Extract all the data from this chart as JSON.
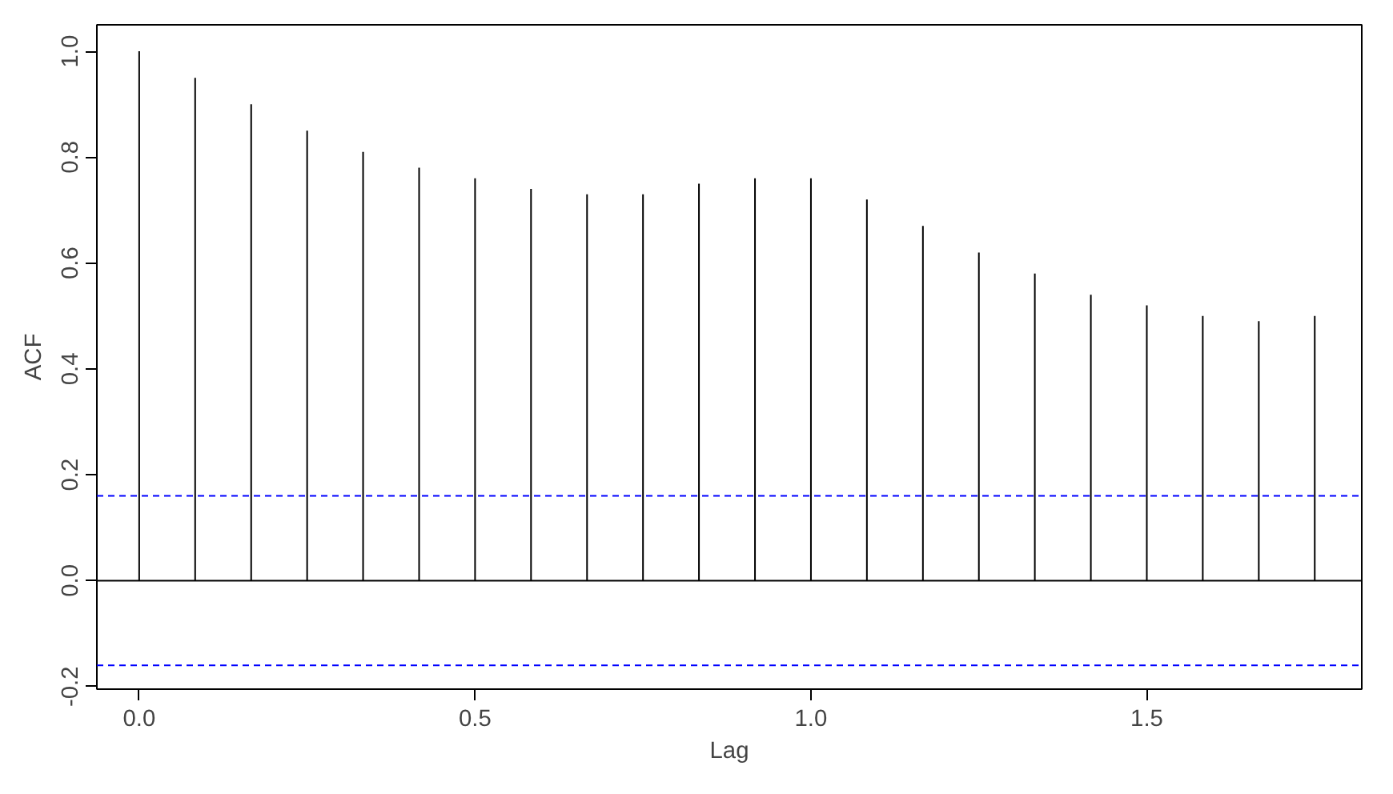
{
  "chart_data": {
    "type": "bar",
    "xlabel": "Lag",
    "ylabel": "ACF",
    "grid": false,
    "x": [
      0,
      0.0833,
      0.1667,
      0.25,
      0.3333,
      0.4167,
      0.5,
      0.5833,
      0.6667,
      0.75,
      0.8333,
      0.9167,
      1,
      1.0833,
      1.1667,
      1.25,
      1.3333,
      1.4167,
      1.5,
      1.5833,
      1.6667,
      1.75
    ],
    "series": [
      {
        "color": "#000000",
        "values": [
          1.0,
          0.95,
          0.9,
          0.85,
          0.81,
          0.78,
          0.76,
          0.74,
          0.73,
          0.73,
          0.75,
          0.76,
          0.76,
          0.72,
          0.67,
          0.62,
          0.58,
          0.54,
          0.52,
          0.5,
          0.49,
          0.5
        ]
      }
    ],
    "xlim": [
      -0.063,
      1.82
    ],
    "ylim": [
      -0.205,
      1.05
    ],
    "xticks": [
      {
        "value": 0,
        "label": "0.0"
      },
      0.5,
      {
        "value": 1,
        "label": "1.0"
      },
      1.5
    ],
    "yticks": [
      {
        "value": -0.2,
        "label": "-0.2"
      },
      {
        "value": 0,
        "label": "0.0"
      },
      0.2,
      0.4,
      0.6,
      0.8,
      {
        "value": 1,
        "label": "1.0"
      }
    ],
    "ref_lines": [
      {
        "axis": "y",
        "value": 0,
        "color": "#000000",
        "line_style": "solid"
      },
      {
        "axis": "y",
        "value": 0.16,
        "color": "#0000ff",
        "line_style": "dashed"
      },
      {
        "axis": "y",
        "value": -0.16,
        "color": "#0000ff",
        "line_style": "dashed"
      }
    ]
  }
}
